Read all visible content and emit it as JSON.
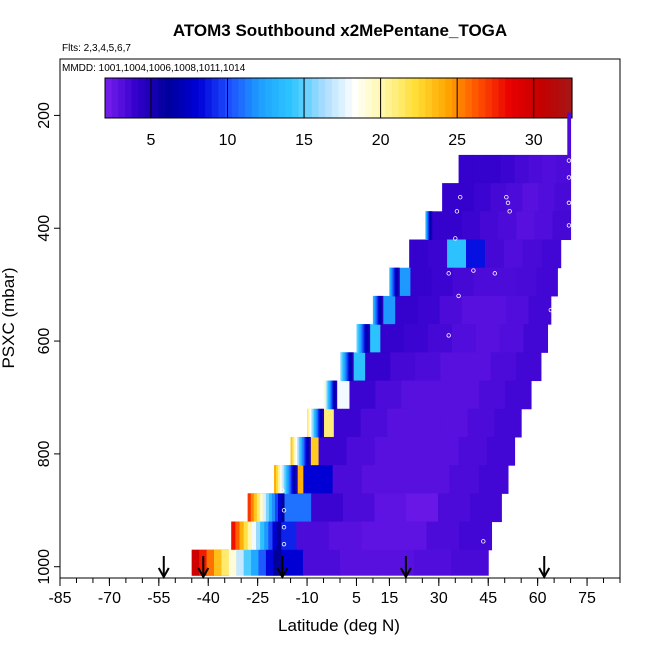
{
  "chart_data": {
    "type": "heatmap",
    "title": "ATOM3 Southbound x2MePentane_TOGA",
    "flights_label": "Flts: 2,3,4,5,6,7",
    "dates_label": "MMDD: 1001,1004,1006,1008,1011,1014",
    "xlabel": "Latitude (deg N)",
    "ylabel": "PSXC (mbar)",
    "xlim": [
      -85,
      85
    ],
    "ylim": [
      1020,
      100
    ],
    "y_reversed": true,
    "x_tick_labels": [
      "-85",
      "-70",
      "-55",
      "-40",
      "-25",
      "-10",
      "5",
      "15",
      "30",
      "45",
      "60",
      "75"
    ],
    "y_ticks": [
      200,
      400,
      600,
      800,
      1000
    ],
    "y_tick_labels": [
      "200",
      "400",
      "600",
      "800",
      "1000"
    ],
    "colorbar": {
      "min": 2,
      "max": 32.5,
      "tick_values": [
        5,
        10,
        15,
        20,
        25,
        30
      ],
      "tick_labels": [
        "5",
        "10",
        "15",
        "20",
        "25",
        "30"
      ],
      "colors": [
        "#7a1ff0",
        "#3300cc",
        "#00009a",
        "#0000d8",
        "#1e50ff",
        "#1ea0ff",
        "#2ec6ff",
        "#a6dcff",
        "#ffffff",
        "#fff6a0",
        "#ffdd33",
        "#ffa500",
        "#ff5000",
        "#ea0000",
        "#c40000",
        "#a61616"
      ]
    },
    "layers": [
      {
        "p_top": 270,
        "p_bot": 320,
        "lat_start": 36,
        "lat_end": 70,
        "vals": [
          4.0,
          4.0,
          4.0,
          3.8,
          3.5,
          3.3,
          3.2,
          3.3
        ]
      },
      {
        "p_top": 320,
        "p_bot": 370,
        "lat_start": 31,
        "lat_end": 70,
        "vals": [
          4.0,
          4.0,
          3.8,
          3.5,
          3.3,
          3.0,
          3.2,
          3.4
        ]
      },
      {
        "p_top": 370,
        "p_bot": 420,
        "lat_start": 26,
        "lat_end": 70,
        "vals": [
          4.0,
          4.0,
          3.8,
          3.5,
          3.3,
          3.0,
          3.2,
          3.5
        ]
      },
      {
        "p_top": 420,
        "p_bot": 470,
        "lat_start": 21,
        "lat_end": 67,
        "vals": [
          4.0,
          3.8,
          14.0,
          8.5,
          3.5,
          3.2,
          3.4,
          3.6
        ]
      },
      {
        "p_top": 470,
        "p_bot": 520,
        "lat_start": 15,
        "lat_end": 66,
        "vals": [
          12.0,
          4.0,
          3.8,
          3.5,
          3.3,
          3.3,
          3.4,
          3.6
        ]
      },
      {
        "p_top": 520,
        "p_bot": 570,
        "lat_start": 10,
        "lat_end": 64,
        "vals": [
          12.0,
          4.0,
          3.8,
          3.3,
          3.0,
          3.0,
          3.2,
          3.6
        ]
      },
      {
        "p_top": 570,
        "p_bot": 620,
        "lat_start": 5,
        "lat_end": 63,
        "vals": [
          14.0,
          4.0,
          3.8,
          3.5,
          3.2,
          3.0,
          3.2,
          3.6
        ]
      },
      {
        "p_top": 620,
        "p_bot": 670,
        "lat_start": 0,
        "lat_end": 61,
        "vals": [
          14.0,
          4.0,
          3.5,
          3.3,
          3.0,
          3.0,
          3.3,
          3.6
        ]
      },
      {
        "p_top": 670,
        "p_bot": 720,
        "lat_start": -5,
        "lat_end": 58,
        "vals": [
          18.0,
          3.8,
          3.3,
          3.0,
          3.0,
          3.0,
          3.3,
          3.6
        ]
      },
      {
        "p_top": 720,
        "p_bot": 770,
        "lat_start": -10,
        "lat_end": 55,
        "vals": [
          21.0,
          3.8,
          3.3,
          3.0,
          3.0,
          3.0,
          3.3,
          3.6
        ]
      },
      {
        "p_top": 770,
        "p_bot": 820,
        "lat_start": -15,
        "lat_end": 53,
        "vals": [
          23.0,
          3.8,
          3.3,
          3.0,
          3.0,
          3.0,
          3.3,
          3.6
        ]
      },
      {
        "p_top": 820,
        "p_bot": 870,
        "lat_start": -20,
        "lat_end": 51,
        "vals": [
          24.0,
          8.0,
          3.3,
          3.0,
          3.0,
          3.0,
          3.3,
          3.6
        ]
      },
      {
        "p_top": 870,
        "p_bot": 920,
        "lat_start": -28,
        "lat_end": 49,
        "vals": [
          28.0,
          11.0,
          3.8,
          3.3,
          2.8,
          2.5,
          3.3,
          3.6
        ]
      },
      {
        "p_top": 920,
        "p_bot": 970,
        "lat_start": -33,
        "lat_end": 46,
        "vals": [
          27.0,
          9.0,
          3.3,
          3.0,
          2.8,
          2.8,
          3.3,
          3.6
        ]
      },
      {
        "p_top": 970,
        "p_bot": 1015,
        "lat_start": -45,
        "lat_end": 45,
        "vals": [
          31.0,
          20.0,
          8.0,
          3.3,
          3.0,
          3.0,
          3.2,
          3.4
        ]
      },
      {
        "p_top": 195,
        "p_bot": 270,
        "lat_start": 69,
        "lat_end": 70,
        "vals": [
          3.3
        ]
      }
    ],
    "layer_gradients": [
      {
        "p_top": 370,
        "p_bot": 420,
        "lat_start": 26,
        "lat_end": 28,
        "from": 14,
        "to": 4
      },
      {
        "p_top": 470,
        "p_bot": 520,
        "lat_start": 15,
        "lat_end": 18,
        "from": 14,
        "to": 4
      },
      {
        "p_top": 520,
        "p_bot": 570,
        "lat_start": 10,
        "lat_end": 13,
        "from": 14,
        "to": 4
      },
      {
        "p_top": 570,
        "p_bot": 620,
        "lat_start": 5,
        "lat_end": 9,
        "from": 16,
        "to": 4
      },
      {
        "p_top": 620,
        "p_bot": 670,
        "lat_start": 0,
        "lat_end": 4,
        "from": 17,
        "to": 4
      },
      {
        "p_top": 670,
        "p_bot": 720,
        "lat_start": -5,
        "lat_end": -1,
        "from": 20,
        "to": 4
      },
      {
        "p_top": 720,
        "p_bot": 770,
        "lat_start": -10,
        "lat_end": -5,
        "from": 22,
        "to": 4
      },
      {
        "p_top": 770,
        "p_bot": 820,
        "lat_start": -15,
        "lat_end": -9,
        "from": 24,
        "to": 4
      },
      {
        "p_top": 820,
        "p_bot": 870,
        "lat_start": -20,
        "lat_end": -13,
        "from": 25,
        "to": 4
      },
      {
        "p_top": 870,
        "p_bot": 920,
        "lat_start": -28,
        "lat_end": -17,
        "from": 28,
        "to": 5
      },
      {
        "p_top": 920,
        "p_bot": 970,
        "lat_start": -33,
        "lat_end": -18,
        "from": 29,
        "to": 5
      },
      {
        "p_top": 970,
        "p_bot": 1015,
        "lat_start": -45,
        "lat_end": -18,
        "from": 31,
        "to": 5
      }
    ],
    "data_points": [
      {
        "lat": 69.5,
        "p": 280
      },
      {
        "lat": 69.5,
        "p": 310
      },
      {
        "lat": 69.5,
        "p": 355
      },
      {
        "lat": 69.5,
        "p": 395
      },
      {
        "lat": 50.5,
        "p": 345
      },
      {
        "lat": 51.0,
        "p": 355
      },
      {
        "lat": 51.5,
        "p": 370
      },
      {
        "lat": 36.5,
        "p": 345
      },
      {
        "lat": 35.5,
        "p": 370
      },
      {
        "lat": 35.0,
        "p": 418
      },
      {
        "lat": 40.5,
        "p": 475
      },
      {
        "lat": 47.0,
        "p": 480
      },
      {
        "lat": 33.0,
        "p": 480
      },
      {
        "lat": 36.0,
        "p": 520
      },
      {
        "lat": 64.0,
        "p": 545
      },
      {
        "lat": 33.0,
        "p": 590
      },
      {
        "lat": 63.0,
        "p": 625
      },
      {
        "lat": -17.5,
        "p": 865
      },
      {
        "lat": -17.0,
        "p": 900
      },
      {
        "lat": -17.0,
        "p": 930
      },
      {
        "lat": -17.0,
        "p": 960
      },
      {
        "lat": 47.5,
        "p": 940
      },
      {
        "lat": 43.5,
        "p": 955
      }
    ],
    "markers_lat": [
      -53.5,
      -41.5,
      -17.5,
      20.0,
      62.0
    ]
  }
}
